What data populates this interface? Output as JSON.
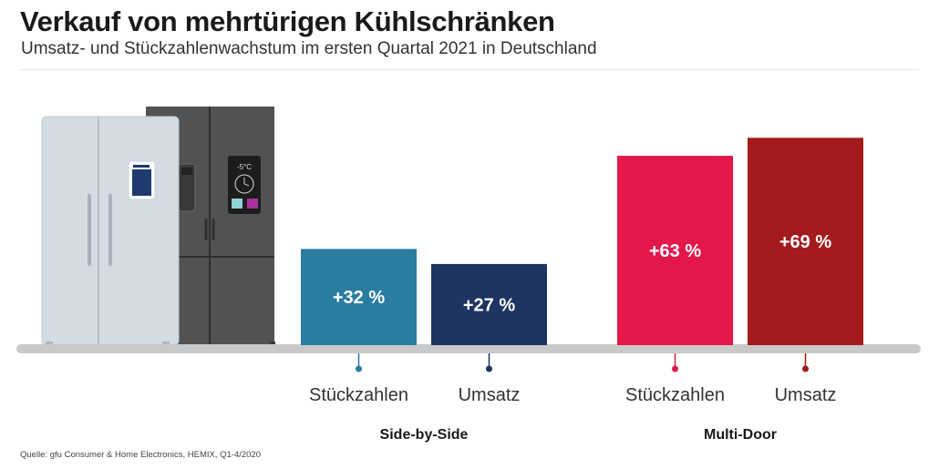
{
  "title": "Verkauf von mehrtürigen Kühlschränken",
  "subtitle": "Umsatz- und Stückzahlenwachstum im ersten Quartal 2021 in Deutschland",
  "source": "Quelle: gfu Consumer & Home Electronics, HEMIX, Q1-4/2020",
  "fridge_display": {
    "temperature": "-5°C"
  },
  "chart_data": {
    "type": "bar",
    "unit": "%",
    "groups": [
      {
        "name": "Side-by-Side",
        "bars": [
          {
            "label": "Stückzahlen",
            "value": 32,
            "display": "+32 %",
            "color": "#2a7ca0"
          },
          {
            "label": "Umsatz",
            "value": 27,
            "display": "+27 %",
            "color": "#1e3461"
          }
        ]
      },
      {
        "name": "Multi-Door",
        "bars": [
          {
            "label": "Stückzahlen",
            "value": 63,
            "display": "+63 %",
            "color": "#e3174a"
          },
          {
            "label": "Umsatz",
            "value": 69,
            "display": "+69 %",
            "color": "#a51b1d"
          }
        ]
      }
    ]
  }
}
